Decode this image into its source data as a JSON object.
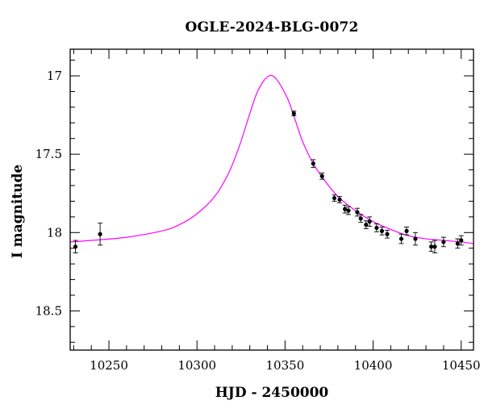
{
  "chart_data": {
    "type": "scatter",
    "title": "OGLE-2024-BLG-0072",
    "xlabel": "HJD - 2450000",
    "ylabel": "I magnitude",
    "xlim": [
      10228,
      10457
    ],
    "ylim": [
      18.75,
      16.83
    ],
    "y_inverted": true,
    "x_major_ticks": [
      10250,
      10300,
      10350,
      10400,
      10450
    ],
    "x_minor_step": 10,
    "y_major_ticks": [
      17,
      17.5,
      18,
      18.5
    ],
    "y_minor_step": 0.1,
    "grid": false,
    "colors": {
      "model": "#ff00ff",
      "points": "#000000"
    },
    "series": [
      {
        "kind": "errorbar-points",
        "x": [
          10231,
          10245,
          10355,
          10366,
          10371,
          10378,
          10381,
          10384,
          10386,
          10391,
          10393,
          10396,
          10398,
          10402,
          10405,
          10408,
          10416,
          10419,
          10424,
          10433,
          10435,
          10440,
          10448,
          10450
        ],
        "y": [
          18.09,
          18.01,
          17.24,
          17.56,
          17.64,
          17.78,
          17.79,
          17.85,
          17.86,
          17.87,
          17.91,
          17.95,
          17.93,
          17.97,
          17.99,
          18.01,
          18.04,
          17.99,
          18.04,
          18.09,
          18.09,
          18.06,
          18.07,
          18.05
        ],
        "err": [
          0.04,
          0.07,
          0.015,
          0.025,
          0.02,
          0.02,
          0.02,
          0.025,
          0.025,
          0.025,
          0.025,
          0.025,
          0.03,
          0.025,
          0.025,
          0.025,
          0.03,
          0.025,
          0.04,
          0.03,
          0.04,
          0.03,
          0.03,
          0.03
        ]
      },
      {
        "kind": "model-curve",
        "x": [
          10228,
          10240,
          10260,
          10280,
          10290,
          10300,
          10310,
          10318,
          10324,
          10330,
          10334,
          10338,
          10341,
          10343,
          10345,
          10348,
          10352,
          10356,
          10360,
          10366,
          10372,
          10380,
          10390,
          10400,
          10410,
          10420,
          10430,
          10440,
          10450,
          10457
        ],
        "y": [
          18.06,
          18.05,
          18.03,
          17.99,
          17.95,
          17.88,
          17.77,
          17.62,
          17.45,
          17.24,
          17.11,
          17.03,
          17.0,
          17.0,
          17.02,
          17.07,
          17.16,
          17.29,
          17.42,
          17.56,
          17.66,
          17.77,
          17.86,
          17.93,
          17.98,
          18.02,
          18.04,
          18.05,
          18.06,
          18.07
        ]
      }
    ]
  }
}
